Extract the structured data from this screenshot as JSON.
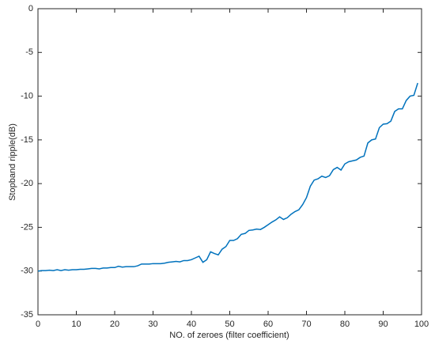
{
  "chart_data": {
    "type": "line",
    "x_label": "NO. of zeroes (filter coefficient)",
    "y_label": "Stopband ripple(dB)",
    "x": [
      0,
      1,
      2,
      3,
      4,
      5,
      6,
      7,
      8,
      9,
      10,
      11,
      12,
      13,
      14,
      15,
      16,
      17,
      18,
      19,
      20,
      21,
      22,
      23,
      24,
      25,
      26,
      27,
      28,
      29,
      30,
      31,
      32,
      33,
      34,
      35,
      36,
      37,
      38,
      39,
      40,
      41,
      42,
      43,
      44,
      45,
      46,
      47,
      48,
      49,
      50,
      51,
      52,
      53,
      54,
      55,
      56,
      57,
      58,
      59,
      60,
      61,
      62,
      63,
      64,
      65,
      66,
      67,
      68,
      69,
      70,
      71,
      72,
      73,
      74,
      75,
      76,
      77,
      78,
      79,
      80,
      81,
      82,
      83,
      84,
      85,
      86,
      87,
      88,
      89,
      90,
      91,
      92,
      93,
      94,
      95,
      96,
      97,
      98,
      99
    ],
    "series": [
      {
        "color": "#0072bd",
        "values": [
          -30.0,
          -29.95,
          -29.95,
          -29.9,
          -29.95,
          -29.85,
          -29.95,
          -29.85,
          -29.9,
          -29.85,
          -29.85,
          -29.8,
          -29.8,
          -29.75,
          -29.7,
          -29.7,
          -29.75,
          -29.65,
          -29.65,
          -29.6,
          -29.6,
          -29.45,
          -29.55,
          -29.5,
          -29.5,
          -29.5,
          -29.4,
          -29.2,
          -29.2,
          -29.2,
          -29.15,
          -29.15,
          -29.15,
          -29.1,
          -29.0,
          -28.95,
          -28.9,
          -28.95,
          -28.8,
          -28.8,
          -28.7,
          -28.5,
          -28.3,
          -29.0,
          -28.7,
          -27.8,
          -28.0,
          -28.15,
          -27.5,
          -27.2,
          -26.5,
          -26.5,
          -26.3,
          -25.8,
          -25.7,
          -25.35,
          -25.3,
          -25.2,
          -25.25,
          -25.0,
          -24.7,
          -24.4,
          -24.15,
          -23.8,
          -24.1,
          -23.9,
          -23.5,
          -23.2,
          -23.0,
          -22.4,
          -21.6,
          -20.3,
          -19.6,
          -19.45,
          -19.15,
          -19.3,
          -19.1,
          -18.4,
          -18.15,
          -18.45,
          -17.75,
          -17.5,
          -17.4,
          -17.3,
          -17.0,
          -16.85,
          -15.35,
          -15.0,
          -14.9,
          -13.6,
          -13.2,
          -13.15,
          -12.85,
          -11.75,
          -11.45,
          -11.45,
          -10.5,
          -10.0,
          -9.9,
          -8.5
        ]
      }
    ],
    "xlim": [
      0,
      100
    ],
    "xticks": [
      0,
      10,
      20,
      30,
      40,
      50,
      60,
      70,
      80,
      90,
      100
    ],
    "ylim": [
      -35,
      0
    ],
    "yticks": [
      -35,
      -30,
      -25,
      -20,
      -15,
      -10,
      -5,
      0
    ],
    "grid": false
  }
}
